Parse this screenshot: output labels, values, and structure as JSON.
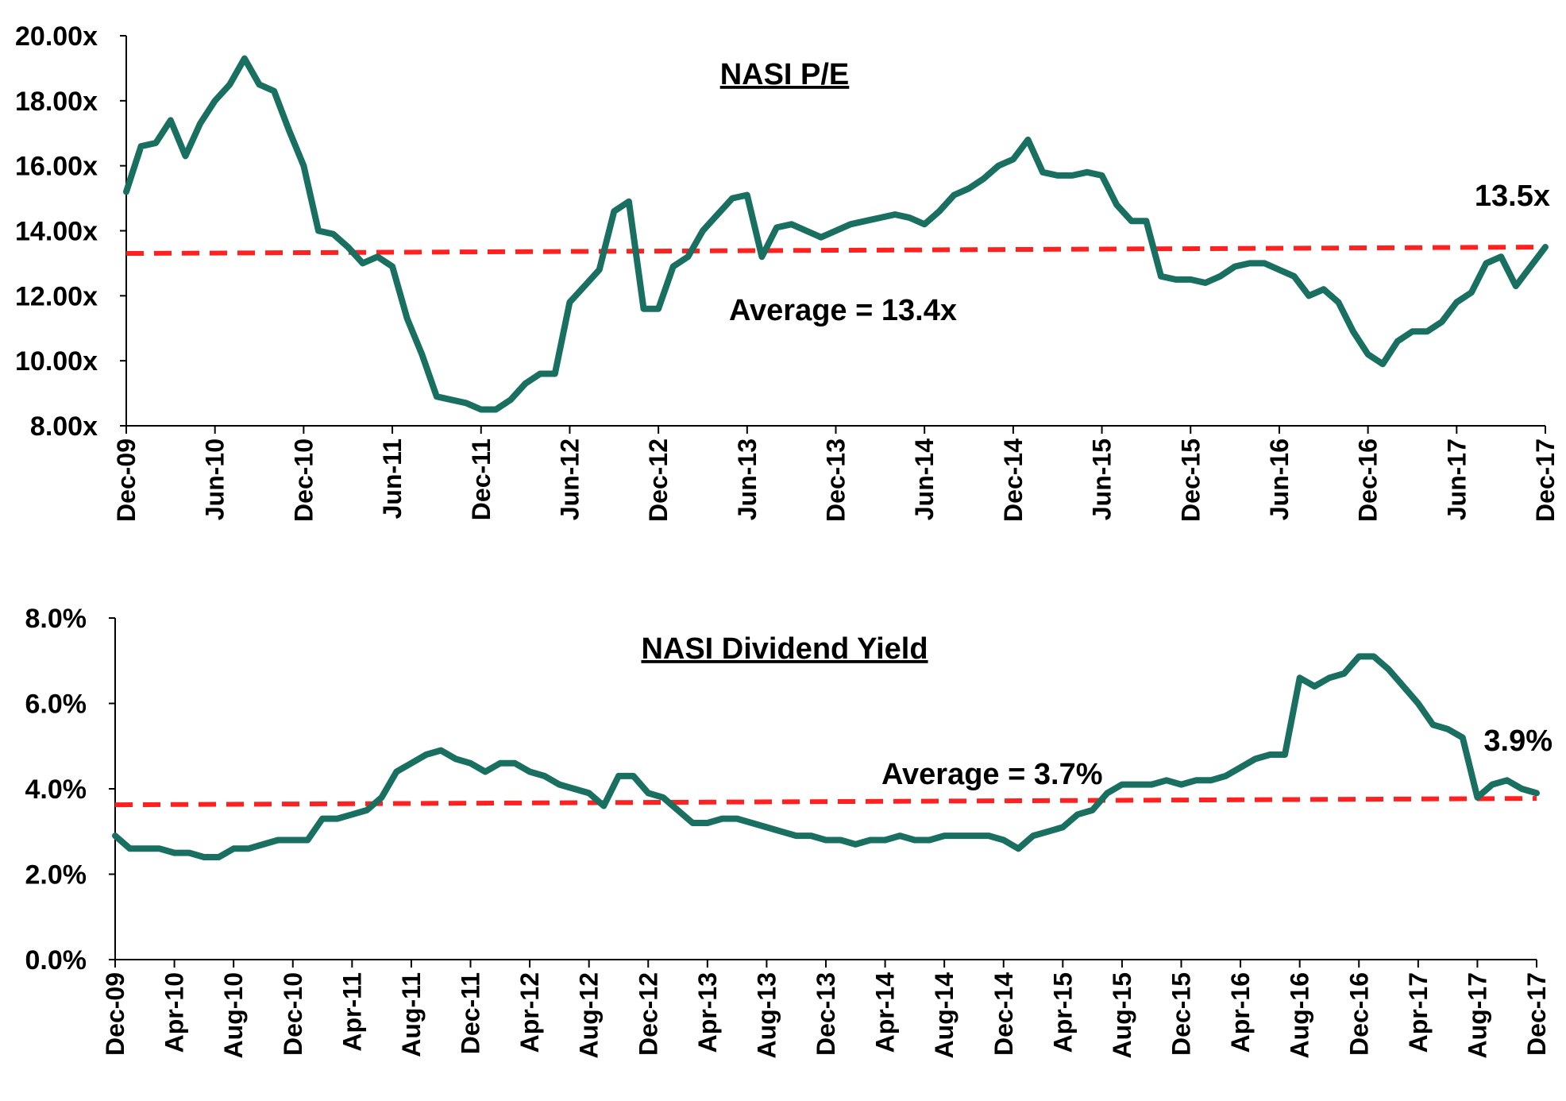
{
  "chart_data": [
    {
      "type": "line",
      "title": "NASI P/E",
      "xlabel": "",
      "ylabel": "",
      "ylim": [
        8,
        20
      ],
      "y_ticks": [
        "8.00x",
        "10.00x",
        "12.00x",
        "14.00x",
        "16.00x",
        "18.00x",
        "20.00x"
      ],
      "x_ticks": [
        "Dec-09",
        "Jun-10",
        "Dec-10",
        "Jun-11",
        "Dec-11",
        "Jun-12",
        "Dec-12",
        "Jun-13",
        "Dec-13",
        "Jun-14",
        "Dec-14",
        "Jun-15",
        "Dec-15",
        "Jun-16",
        "Dec-16",
        "Jun-17",
        "Dec-17"
      ],
      "xlim": [
        "Dec-09",
        "Dec-17"
      ],
      "grid": false,
      "legend": "none",
      "series_color": "#1a7060",
      "average_color": "#ff2020",
      "series": [
        {
          "x": [
            "Dec-09",
            "Jan-10",
            "Feb-10",
            "Mar-10",
            "Apr-10",
            "May-10",
            "Jun-10",
            "Jul-10",
            "Aug-10",
            "Sep-10",
            "Oct-10",
            "Nov-10",
            "Dec-10",
            "Jan-11",
            "Feb-11",
            "Mar-11",
            "Apr-11",
            "May-11",
            "Jun-11",
            "Jul-11",
            "Aug-11",
            "Sep-11",
            "Oct-11",
            "Nov-11",
            "Dec-11",
            "Jan-12",
            "Feb-12",
            "Mar-12",
            "Apr-12",
            "May-12",
            "Jun-12",
            "Jul-12",
            "Aug-12",
            "Sep-12",
            "Oct-12",
            "Nov-12",
            "Dec-12",
            "Jan-13",
            "Feb-13",
            "Mar-13",
            "Apr-13",
            "May-13",
            "Jun-13",
            "Jul-13",
            "Aug-13",
            "Sep-13",
            "Oct-13",
            "Nov-13",
            "Dec-13",
            "Jan-14",
            "Feb-14",
            "Mar-14",
            "Apr-14",
            "May-14",
            "Jun-14",
            "Jul-14",
            "Aug-14",
            "Sep-14",
            "Oct-14",
            "Nov-14",
            "Dec-14",
            "Jan-15",
            "Feb-15",
            "Mar-15",
            "Apr-15",
            "May-15",
            "Jun-15",
            "Jul-15",
            "Aug-15",
            "Sep-15",
            "Oct-15",
            "Nov-15",
            "Dec-15",
            "Jan-16",
            "Feb-16",
            "Mar-16",
            "Apr-16",
            "May-16",
            "Jun-16",
            "Jul-16",
            "Aug-16",
            "Sep-16",
            "Oct-16",
            "Nov-16",
            "Dec-16",
            "Jan-17",
            "Feb-17",
            "Mar-17",
            "Apr-17",
            "May-17",
            "Jun-17",
            "Jul-17",
            "Aug-17",
            "Sep-17",
            "Oct-17",
            "Nov-17",
            "Dec-17"
          ],
          "values": [
            15.2,
            16.6,
            16.7,
            17.4,
            16.3,
            17.3,
            18.0,
            18.5,
            19.3,
            18.5,
            18.3,
            17.1,
            16.0,
            14.0,
            13.9,
            13.5,
            13.0,
            13.2,
            12.9,
            11.3,
            10.2,
            8.9,
            8.8,
            8.7,
            8.5,
            8.5,
            8.8,
            9.3,
            9.6,
            9.6,
            11.8,
            12.3,
            12.8,
            14.6,
            14.9,
            11.6,
            11.6,
            12.9,
            13.2,
            14.0,
            14.5,
            15.0,
            15.1,
            13.2,
            14.1,
            14.2,
            14.0,
            13.8,
            14.0,
            14.2,
            14.3,
            14.4,
            14.5,
            14.4,
            14.2,
            14.6,
            15.1,
            15.3,
            15.6,
            16.0,
            16.2,
            16.8,
            15.8,
            15.7,
            15.7,
            15.8,
            15.7,
            14.8,
            14.3,
            14.3,
            12.6,
            12.5,
            12.5,
            12.4,
            12.6,
            12.9,
            13.0,
            13.0,
            12.8,
            12.6,
            12.0,
            12.2,
            11.8,
            10.9,
            10.2,
            9.9,
            10.6,
            10.9,
            10.9,
            11.2,
            11.8,
            12.1,
            13.0,
            13.2,
            12.3,
            12.9,
            13.5
          ]
        }
      ],
      "average_value": 13.4,
      "annotations": {
        "average_label": "Average = 13.4x",
        "last_value_label": "13.5x"
      }
    },
    {
      "type": "line",
      "title": "NASI Dividend Yield",
      "xlabel": "",
      "ylabel": "",
      "ylim": [
        0,
        8
      ],
      "y_ticks": [
        "0.0%",
        "2.0%",
        "4.0%",
        "6.0%",
        "8.0%"
      ],
      "x_ticks": [
        "Dec-09",
        "Apr-10",
        "Aug-10",
        "Dec-10",
        "Apr-11",
        "Aug-11",
        "Dec-11",
        "Apr-12",
        "Aug-12",
        "Dec-12",
        "Apr-13",
        "Aug-13",
        "Dec-13",
        "Apr-14",
        "Aug-14",
        "Dec-14",
        "Apr-15",
        "Aug-15",
        "Dec-15",
        "Apr-16",
        "Aug-16",
        "Dec-16",
        "Apr-17",
        "Aug-17",
        "Dec-17"
      ],
      "xlim": [
        "Dec-09",
        "Dec-17"
      ],
      "grid": false,
      "legend": "none",
      "series_color": "#1a7060",
      "average_color": "#ff2020",
      "series": [
        {
          "x": [
            "Dec-09",
            "Jan-10",
            "Feb-10",
            "Mar-10",
            "Apr-10",
            "May-10",
            "Jun-10",
            "Jul-10",
            "Aug-10",
            "Sep-10",
            "Oct-10",
            "Nov-10",
            "Dec-10",
            "Jan-11",
            "Feb-11",
            "Mar-11",
            "Apr-11",
            "May-11",
            "Jun-11",
            "Jul-11",
            "Aug-11",
            "Sep-11",
            "Oct-11",
            "Nov-11",
            "Dec-11",
            "Jan-12",
            "Feb-12",
            "Mar-12",
            "Apr-12",
            "May-12",
            "Jun-12",
            "Jul-12",
            "Aug-12",
            "Sep-12",
            "Oct-12",
            "Nov-12",
            "Dec-12",
            "Jan-13",
            "Feb-13",
            "Mar-13",
            "Apr-13",
            "May-13",
            "Jun-13",
            "Jul-13",
            "Aug-13",
            "Sep-13",
            "Oct-13",
            "Nov-13",
            "Dec-13",
            "Jan-14",
            "Feb-14",
            "Mar-14",
            "Apr-14",
            "May-14",
            "Jun-14",
            "Jul-14",
            "Aug-14",
            "Sep-14",
            "Oct-14",
            "Nov-14",
            "Dec-14",
            "Jan-15",
            "Feb-15",
            "Mar-15",
            "Apr-15",
            "May-15",
            "Jun-15",
            "Jul-15",
            "Aug-15",
            "Sep-15",
            "Oct-15",
            "Nov-15",
            "Dec-15",
            "Jan-16",
            "Feb-16",
            "Mar-16",
            "Apr-16",
            "May-16",
            "Jun-16",
            "Jul-16",
            "Aug-16",
            "Sep-16",
            "Oct-16",
            "Nov-16",
            "Dec-16",
            "Jan-17",
            "Feb-17",
            "Mar-17",
            "Apr-17",
            "May-17",
            "Jun-17",
            "Jul-17",
            "Aug-17",
            "Sep-17",
            "Oct-17",
            "Nov-17",
            "Dec-17"
          ],
          "values": [
            2.9,
            2.6,
            2.6,
            2.6,
            2.5,
            2.5,
            2.4,
            2.4,
            2.6,
            2.6,
            2.7,
            2.8,
            2.8,
            2.8,
            3.3,
            3.3,
            3.4,
            3.5,
            3.8,
            4.4,
            4.6,
            4.8,
            4.9,
            4.7,
            4.6,
            4.4,
            4.6,
            4.6,
            4.4,
            4.3,
            4.1,
            4.0,
            3.9,
            3.6,
            4.3,
            4.3,
            3.9,
            3.8,
            3.5,
            3.2,
            3.2,
            3.3,
            3.3,
            3.2,
            3.1,
            3.0,
            2.9,
            2.9,
            2.8,
            2.8,
            2.7,
            2.8,
            2.8,
            2.9,
            2.8,
            2.8,
            2.9,
            2.9,
            2.9,
            2.9,
            2.8,
            2.6,
            2.9,
            3.0,
            3.1,
            3.4,
            3.5,
            3.9,
            4.1,
            4.1,
            4.1,
            4.2,
            4.1,
            4.2,
            4.2,
            4.3,
            4.5,
            4.7,
            4.8,
            4.8,
            6.6,
            6.4,
            6.6,
            6.7,
            7.1,
            7.1,
            6.8,
            6.4,
            6.0,
            5.5,
            5.4,
            5.2,
            3.8,
            4.1,
            4.2,
            4.0,
            3.9
          ]
        }
      ],
      "average_value": 3.7,
      "annotations": {
        "average_label": "Average = 3.7%",
        "last_value_label": "3.9%"
      }
    }
  ]
}
